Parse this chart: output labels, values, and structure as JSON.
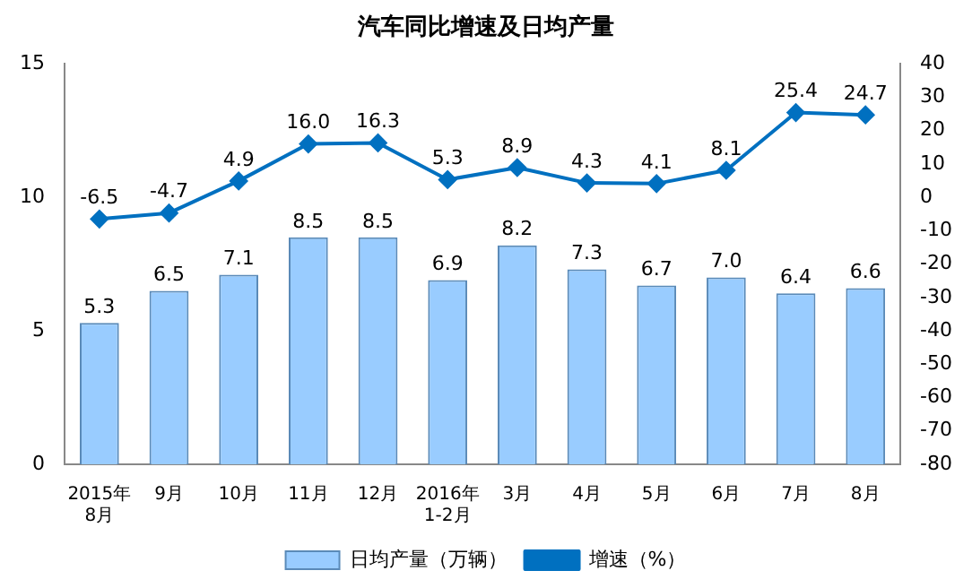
{
  "chart_data": {
    "type": "bar",
    "title": "汽车同比增速及日均产量",
    "categories": [
      "2015年\n8月",
      "9月",
      "10月",
      "11月",
      "12月",
      "2016年\n1-2月",
      "3月",
      "4月",
      "5月",
      "6月",
      "7月",
      "8月"
    ],
    "series": [
      {
        "name": "日均产量（万辆）",
        "color": "#99ccff",
        "values": [
          5.3,
          6.5,
          7.1,
          8.5,
          8.5,
          6.9,
          8.2,
          7.3,
          6.7,
          7.0,
          6.4,
          6.6
        ],
        "value_labels": [
          "5.3",
          "6.5",
          "7.1",
          "8.5",
          "8.5",
          "6.9",
          "8.2",
          "7.3",
          "6.7",
          "7.0",
          "6.4",
          "6.6"
        ]
      },
      {
        "name": "增速（%）",
        "type": "line",
        "axis": "y2",
        "color": "#0070c0",
        "values": [
          -6.5,
          -4.7,
          4.9,
          16.0,
          16.3,
          5.3,
          8.9,
          4.3,
          4.1,
          8.1,
          25.4,
          24.7
        ],
        "value_labels": [
          "-6.5",
          "-4.7",
          "4.9",
          "16.0",
          "16.3",
          "5.3",
          "8.9",
          "4.3",
          "4.1",
          "8.1",
          "25.4",
          "24.7"
        ]
      }
    ],
    "ylim": [
      0,
      15
    ],
    "yticks": [
      0,
      5,
      10,
      15
    ],
    "y2lim": [
      -80,
      40
    ],
    "y2ticks": [
      -80,
      -70,
      -60,
      -50,
      -40,
      -30,
      -20,
      -10,
      0,
      10,
      20,
      30,
      40
    ],
    "grid": false,
    "legend": "bottom",
    "marker": "diamond",
    "line_style": "solid"
  }
}
